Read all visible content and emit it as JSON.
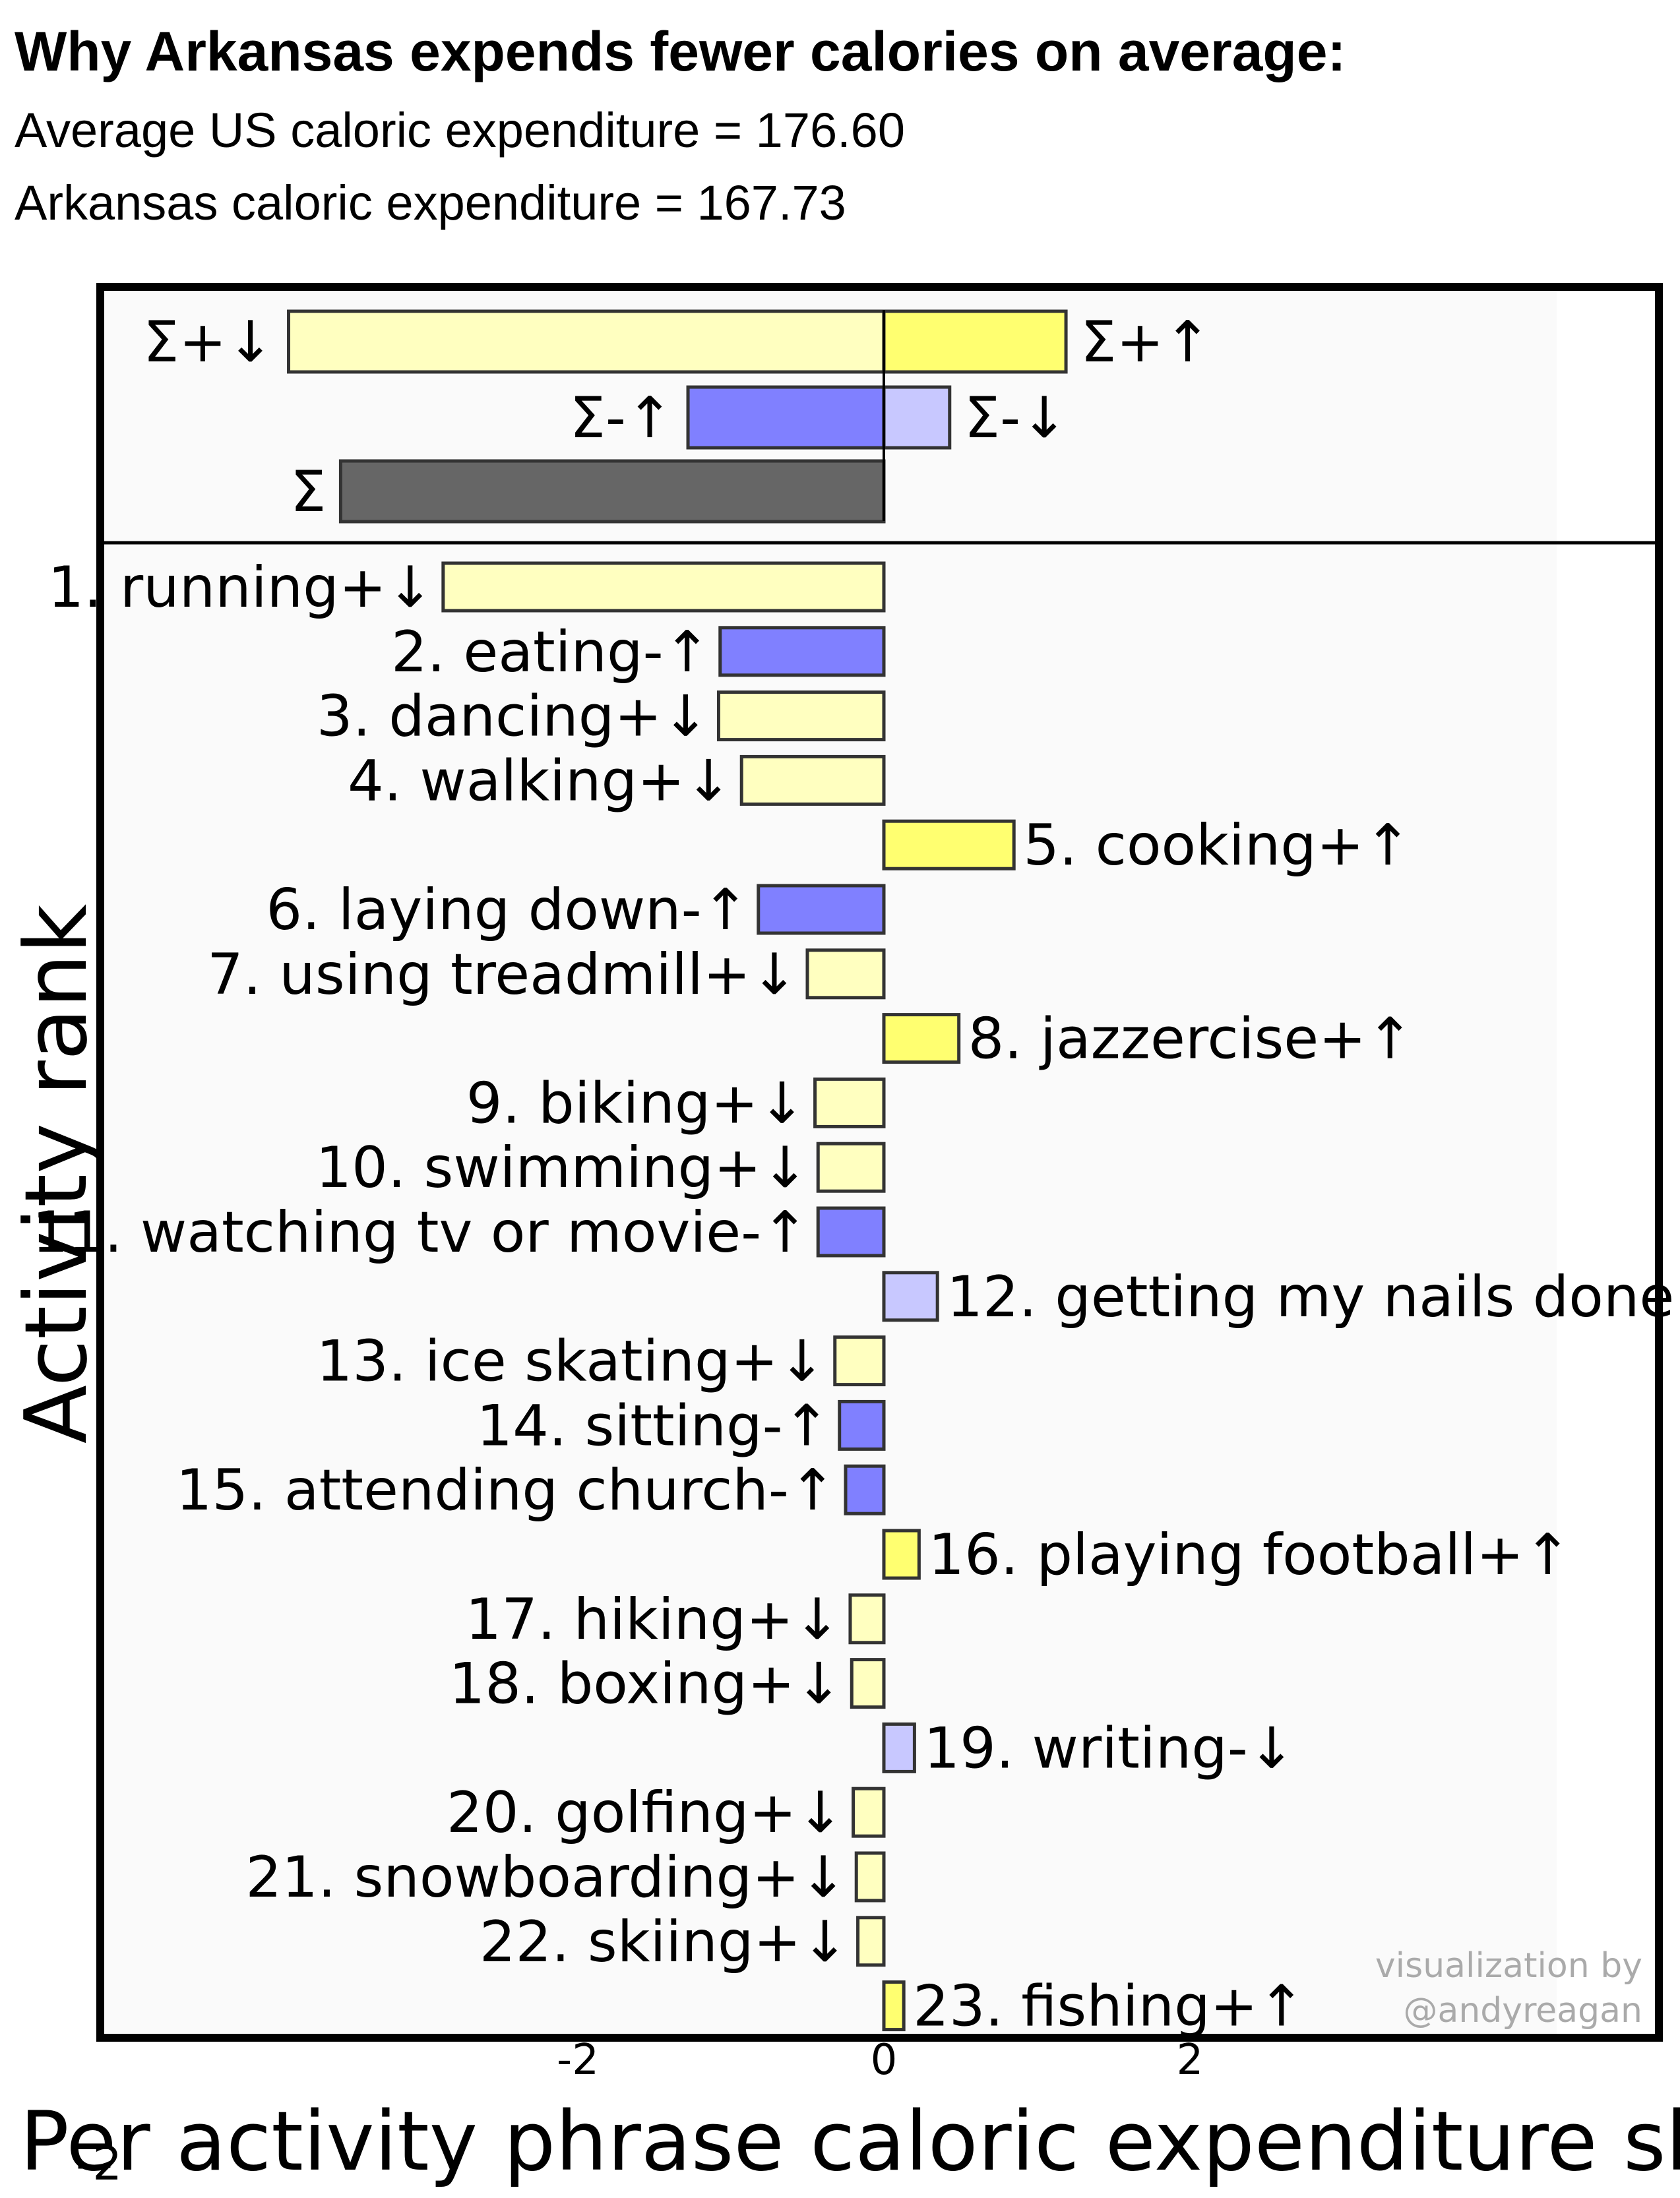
{
  "header": {
    "title": "Why Arkansas expends fewer calories on average:",
    "line1": "Average US caloric expenditure = 176.60",
    "line2": "Arkansas caloric expenditure = 167.73"
  },
  "colors": {
    "pos_down": "#ffffc0",
    "pos_up": "#ffff70",
    "neg_up": "#8080ff",
    "neg_down": "#c8c8ff",
    "sum": "#666666",
    "frame": "#000000",
    "panel_bg": "#fafafa"
  },
  "chart_data": {
    "type": "bar",
    "orientation": "horizontal",
    "ylabel": "Activity rank",
    "xlabel": "Per activity phrase caloric expenditure shi",
    "xticks": [
      "-2",
      "0",
      "2"
    ],
    "corner_tick": "-2",
    "xlim": [
      -5.8,
      5.1
    ],
    "watermark": [
      "visualization by",
      "@andyreagan"
    ],
    "summary": [
      {
        "label": "Σ+↓",
        "value": -3.89,
        "kind": "pos_down"
      },
      {
        "label": "Σ+↑",
        "value": 1.19,
        "kind": "pos_up"
      },
      {
        "label": "Σ-↑",
        "value": -1.28,
        "kind": "neg_up"
      },
      {
        "label": "Σ-↓",
        "value": 0.43,
        "kind": "neg_down"
      },
      {
        "label": "Σ",
        "value": -3.55,
        "kind": "sum"
      }
    ],
    "bars": [
      {
        "label": "1. running+↓",
        "value": -2.88,
        "kind": "pos_down"
      },
      {
        "label": "2. eating-↑",
        "value": -1.07,
        "kind": "neg_up"
      },
      {
        "label": "3. dancing+↓",
        "value": -1.08,
        "kind": "pos_down"
      },
      {
        "label": "4. walking+↓",
        "value": -0.93,
        "kind": "pos_down"
      },
      {
        "label": "5. cooking+↑",
        "value": 0.85,
        "kind": "pos_up"
      },
      {
        "label": "6. laying down-↑",
        "value": -0.82,
        "kind": "neg_up"
      },
      {
        "label": "7. using treadmill+↓",
        "value": -0.5,
        "kind": "pos_down"
      },
      {
        "label": "8. jazzercise+↑",
        "value": 0.49,
        "kind": "pos_up"
      },
      {
        "label": "9. biking+↓",
        "value": -0.45,
        "kind": "pos_down"
      },
      {
        "label": "10. swimming+↓",
        "value": -0.43,
        "kind": "pos_down"
      },
      {
        "label": "11. watching tv or movie-↑",
        "value": -0.43,
        "kind": "neg_up"
      },
      {
        "label": "12. getting my nails done",
        "value": 0.35,
        "kind": "neg_down"
      },
      {
        "label": "13. ice skating+↓",
        "value": -0.32,
        "kind": "pos_down"
      },
      {
        "label": "14. sitting-↑",
        "value": -0.29,
        "kind": "neg_up"
      },
      {
        "label": "15. attending church-↑",
        "value": -0.25,
        "kind": "neg_up"
      },
      {
        "label": "16. playing football+↑",
        "value": 0.23,
        "kind": "pos_up"
      },
      {
        "label": "17. hiking+↓",
        "value": -0.22,
        "kind": "pos_down"
      },
      {
        "label": "18. boxing+↓",
        "value": -0.21,
        "kind": "pos_down"
      },
      {
        "label": "19. writing-↓",
        "value": 0.2,
        "kind": "neg_down"
      },
      {
        "label": "20. golfing+↓",
        "value": -0.2,
        "kind": "pos_down"
      },
      {
        "label": "21. snowboarding+↓",
        "value": -0.18,
        "kind": "pos_down"
      },
      {
        "label": "22. skiing+↓",
        "value": -0.17,
        "kind": "pos_down"
      },
      {
        "label": "23. fishing+↑",
        "value": 0.13,
        "kind": "pos_up"
      }
    ]
  }
}
